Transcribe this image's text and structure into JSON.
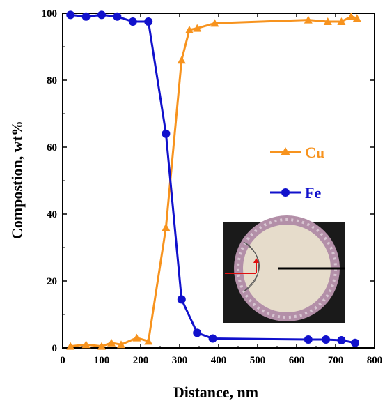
{
  "chart_data": {
    "type": "line",
    "title": "",
    "xlabel": "Distance, nm",
    "ylabel": "Compostion, wt%",
    "xlim": [
      0,
      800
    ],
    "ylim": [
      0,
      100
    ],
    "xticks": [
      0,
      100,
      200,
      300,
      400,
      500,
      600,
      700,
      800
    ],
    "yticks": [
      0,
      20,
      40,
      60,
      80,
      100
    ],
    "grid": false,
    "legend_position": "right",
    "series": [
      {
        "name": "Cu",
        "color": "#F7931E",
        "marker": "triangle",
        "points": [
          [
            20,
            0.5
          ],
          [
            60,
            1.0
          ],
          [
            100,
            0.5
          ],
          [
            125,
            1.5
          ],
          [
            150,
            1.0
          ],
          [
            190,
            3.0
          ],
          [
            220,
            2.0
          ],
          [
            265,
            36
          ],
          [
            305,
            86
          ],
          [
            325,
            95
          ],
          [
            345,
            95.5
          ],
          [
            390,
            97
          ],
          [
            630,
            98
          ],
          [
            680,
            97.5
          ],
          [
            715,
            97.5
          ],
          [
            740,
            99
          ],
          [
            755,
            98.5
          ]
        ]
      },
      {
        "name": "Fe",
        "color": "#1111CC",
        "marker": "circle",
        "points": [
          [
            20,
            99.5
          ],
          [
            60,
            99
          ],
          [
            100,
            99.5
          ],
          [
            140,
            99
          ],
          [
            180,
            97.5
          ],
          [
            220,
            97.5
          ],
          [
            265,
            64
          ],
          [
            305,
            14.5
          ],
          [
            345,
            4.5
          ],
          [
            385,
            2.8
          ],
          [
            630,
            2.5
          ],
          [
            675,
            2.5
          ],
          [
            715,
            2.3
          ],
          [
            750,
            1.5
          ]
        ]
      }
    ]
  },
  "inset": {
    "description_icon": "cross-section-micrograph",
    "background": "#1a1a1a",
    "rim_color": "#b38fa8",
    "core_color": "#e6dccb"
  }
}
